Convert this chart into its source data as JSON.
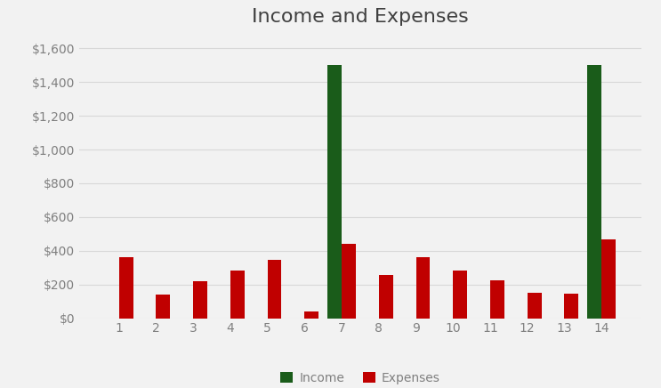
{
  "title": "Income and Expenses",
  "categories": [
    1,
    2,
    3,
    4,
    5,
    6,
    7,
    8,
    9,
    10,
    11,
    12,
    13,
    14
  ],
  "income": [
    0,
    0,
    0,
    0,
    0,
    0,
    1500,
    0,
    0,
    0,
    0,
    0,
    0,
    1500
  ],
  "expenses": [
    360,
    140,
    220,
    285,
    345,
    40,
    440,
    255,
    360,
    285,
    225,
    150,
    145,
    465
  ],
  "income_color": "#1a5c1a",
  "expenses_color": "#c00000",
  "background_color": "#f2f2f2",
  "plot_bg_color": "#f2f2f2",
  "ylim": [
    0,
    1680
  ],
  "yticks": [
    0,
    200,
    400,
    600,
    800,
    1000,
    1200,
    1400,
    1600
  ],
  "bar_width": 0.38,
  "legend_labels": [
    "Income",
    "Expenses"
  ],
  "title_fontsize": 16,
  "tick_fontsize": 10,
  "legend_fontsize": 10,
  "grid_color": "#d8d8d8",
  "tick_color": "#808080"
}
